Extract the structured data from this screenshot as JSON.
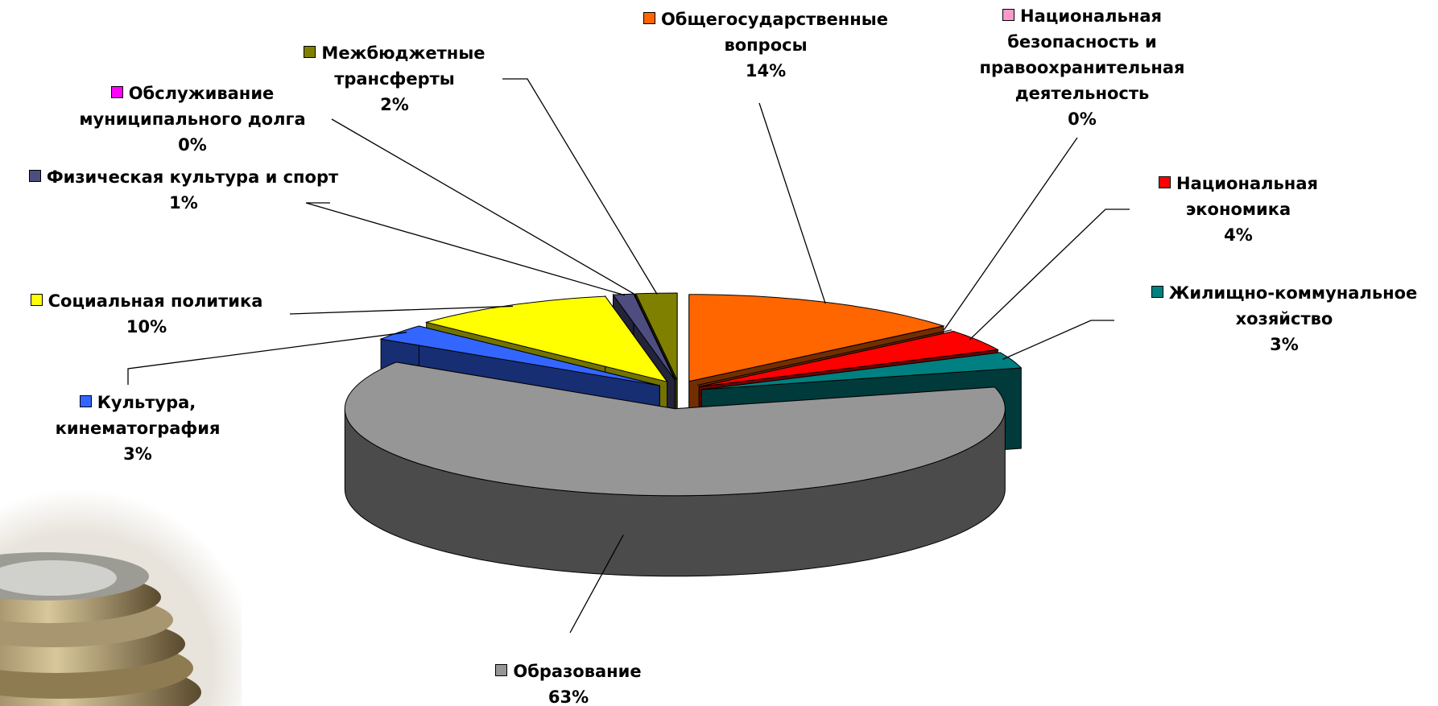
{
  "chart_data": {
    "type": "pie3d",
    "categories": [
      "Общегосударственные вопросы",
      "Национальная безопасность и правоохранительная деятельность",
      "Национальная экономика",
      "Жилищно-коммунальное хозяйство",
      "Образование",
      "Культура, кинематография",
      "Социальная политика",
      "Физическая культура и спорт",
      "Обслуживание муниципального долга",
      "Межбюджетные трансферты"
    ],
    "values": [
      14,
      0,
      4,
      3,
      63,
      3,
      10,
      1,
      0,
      2
    ],
    "value_labels": [
      "14%",
      "0%",
      "4%",
      "3%",
      "63%",
      "3%",
      "10%",
      "1%",
      "0%",
      "2%"
    ],
    "colors": [
      "#ff6600",
      "#ff99cc",
      "#ff0000",
      "#008080",
      "#969696",
      "#3366ff",
      "#ffff00",
      "#4d4d80",
      "#ff00ff",
      "#808000"
    ]
  }
}
